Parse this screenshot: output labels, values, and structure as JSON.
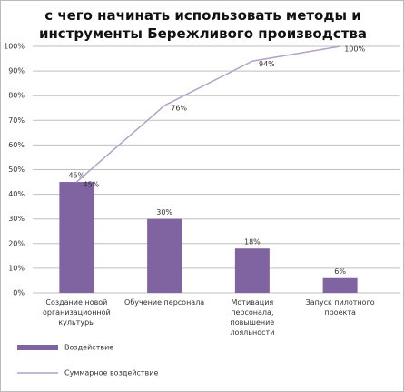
{
  "chart_data": {
    "type": "bar",
    "title": "с чего начинать использовать методы и инструменты Бережливого производства",
    "categories": [
      "Создание новой организационной культуры",
      "Обучение персонала",
      "Мотивация персонала, повышение лояльности",
      "Запуск пилотного проекта"
    ],
    "series": [
      {
        "name": "Воздействие",
        "type": "bar",
        "color": "#8064a2",
        "values": [
          45,
          30,
          18,
          6
        ],
        "value_labels": [
          "45%",
          "30%",
          "18%",
          "6%"
        ]
      },
      {
        "name": "Суммарное воздействие",
        "type": "line",
        "color": "#b3a2c7",
        "values": [
          45,
          76,
          94,
          100
        ],
        "value_labels": [
          "45%",
          "76%",
          "94%",
          "100%"
        ]
      }
    ],
    "ylim": [
      0,
      100
    ],
    "yticks": [
      {
        "value": 0,
        "label": "0%"
      },
      {
        "value": 10,
        "label": "10%"
      },
      {
        "value": 20,
        "label": "20%"
      },
      {
        "value": 30,
        "label": "30%"
      },
      {
        "value": 40,
        "label": "40%"
      },
      {
        "value": 50,
        "label": "50%"
      },
      {
        "value": 60,
        "label": "60%"
      },
      {
        "value": 70,
        "label": "70%"
      },
      {
        "value": 80,
        "label": "80%"
      },
      {
        "value": 90,
        "label": "90%"
      },
      {
        "value": 100,
        "label": "100%"
      }
    ],
    "grid": true,
    "legend": "bottom-left"
  }
}
